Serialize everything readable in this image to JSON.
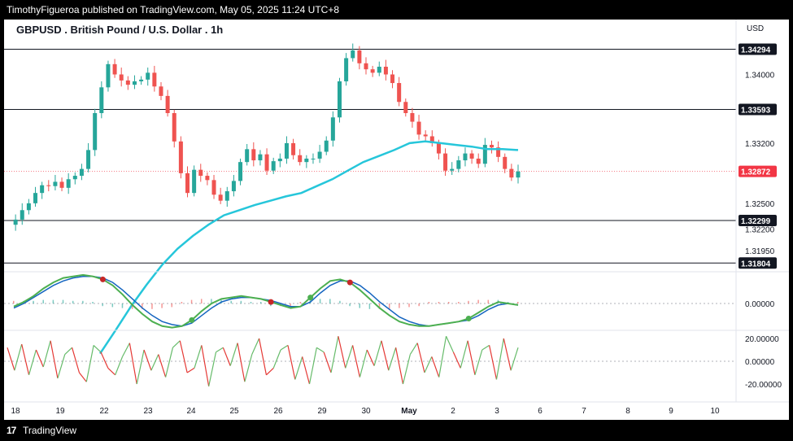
{
  "header": {
    "publisher_text": "TimothyFigueroa published on TradingView.com, May 05, 2025 11:24 UTC+8"
  },
  "footer": {
    "logo_glyph": "17",
    "brand": "TradingView"
  },
  "chart_data": {
    "type": "line",
    "title": "GBPUSD . British Pound / U.S. Dollar . 1h",
    "currency": "USD",
    "price_axis_ticks": [
      "1.34000",
      "1.33200",
      "1.32500",
      "1.32200",
      "1.31950"
    ],
    "horizontal_levels": [
      {
        "label": "1.34294",
        "value": 1.34294
      },
      {
        "label": "1.33593",
        "value": 1.33593
      },
      {
        "label": "1.32299",
        "value": 1.32299
      },
      {
        "label": "1.31804",
        "value": 1.31804
      }
    ],
    "last_price": {
      "label": "1.32872",
      "value": 1.32872,
      "color": "#f23645"
    },
    "date_labels": [
      "18",
      "19",
      "22",
      "23",
      "24",
      "25",
      "26",
      "29",
      "30",
      "May",
      "2",
      "3",
      "6",
      "7",
      "8",
      "9",
      "10"
    ],
    "price_series": [
      1.3225,
      1.3231,
      1.3242,
      1.325,
      1.3262,
      1.3271,
      1.327,
      1.3275,
      1.3268,
      1.3278,
      1.3282,
      1.329,
      1.3312,
      1.3355,
      1.3385,
      1.3412,
      1.34,
      1.3393,
      1.3388,
      1.3392,
      1.3394,
      1.3402,
      1.3386,
      1.3375,
      1.3355,
      1.3322,
      1.3285,
      1.3262,
      1.3289,
      1.3282,
      1.3277,
      1.326,
      1.3253,
      1.3264,
      1.3276,
      1.3298,
      1.3313,
      1.33,
      1.3307,
      1.3288,
      1.3299,
      1.3302,
      1.332,
      1.3306,
      1.3298,
      1.3302,
      1.3302,
      1.331,
      1.3323,
      1.335,
      1.3392,
      1.3419,
      1.3428,
      1.3413,
      1.3406,
      1.3402,
      1.3409,
      1.34,
      1.339,
      1.3368,
      1.3355,
      1.3345,
      1.333,
      1.3328,
      1.332,
      1.3308,
      1.3288,
      1.329,
      1.33,
      1.3308,
      1.3302,
      1.3296,
      1.3318,
      1.3315,
      1.3304,
      1.329,
      1.328,
      1.3287
    ],
    "ma_series": [
      1.3075,
      1.3102,
      1.313,
      1.3155,
      1.3178,
      1.3197,
      1.3212,
      1.3225,
      1.3236,
      1.3242,
      1.3248,
      1.3253,
      1.3258,
      1.3262,
      1.327,
      1.3278,
      1.3288,
      1.3298,
      1.3305,
      1.3312,
      1.332,
      1.3322,
      1.332,
      1.3318,
      1.3316,
      1.3313,
      1.3313,
      1.3312
    ],
    "oscillator": {
      "zero_label": "0.00000",
      "fast": [
        -2,
        1,
        5,
        10,
        14,
        17,
        18,
        19,
        18,
        16,
        12,
        6,
        -1,
        -7,
        -12,
        -15,
        -16,
        -15,
        -11,
        -5,
        0,
        3,
        4,
        5,
        4,
        3,
        1,
        -1,
        -3,
        -2,
        4,
        10,
        15,
        16,
        14,
        9,
        3,
        -3,
        -8,
        -12,
        -14,
        -15,
        -15,
        -14,
        -13,
        -12,
        -10,
        -6,
        -2,
        1,
        0,
        -1
      ],
      "signal": [
        -3,
        0,
        4,
        8,
        12,
        15,
        17,
        18,
        18,
        17,
        14,
        9,
        3,
        -3,
        -8,
        -12,
        -14,
        -15,
        -13,
        -8,
        -3,
        1,
        3,
        4,
        4,
        3,
        2,
        0,
        -2,
        -2,
        1,
        7,
        12,
        15,
        15,
        12,
        7,
        1,
        -4,
        -9,
        -12,
        -14,
        -15,
        -14,
        -13,
        -12,
        -11,
        -8,
        -4,
        -1,
        0,
        -1
      ],
      "dot_colors": {
        "up": "#4caf50",
        "down": "#c62828"
      }
    },
    "momentum": {
      "tick_labels": [
        "20.00000",
        "0.00000",
        "-20.00000"
      ],
      "values": [
        12,
        -8,
        15,
        -12,
        10,
        -5,
        18,
        -15,
        6,
        12,
        -10,
        -18,
        14,
        8,
        -6,
        -12,
        4,
        16,
        -20,
        10,
        -8,
        6,
        -14,
        12,
        18,
        -10,
        -6,
        14,
        -22,
        8,
        12,
        -4,
        16,
        -18,
        6,
        20,
        -12,
        -6,
        10,
        14,
        -16,
        4,
        -20,
        12,
        8,
        -10,
        22,
        -6,
        14,
        -14,
        10,
        -4,
        18,
        -8,
        12,
        -20,
        6,
        16,
        -10,
        4,
        -14,
        22,
        8,
        -6,
        18,
        -12,
        10,
        14,
        -16,
        20,
        -8,
        12
      ]
    },
    "colors": {
      "up_candle": "#26a69a",
      "down_candle": "#ef5350",
      "moving_average": "#26c6da",
      "fast_line": "#4caf50",
      "slow_line": "#1565c0",
      "momentum_up": "#66bb6a",
      "momentum_down": "#e53935"
    }
  }
}
